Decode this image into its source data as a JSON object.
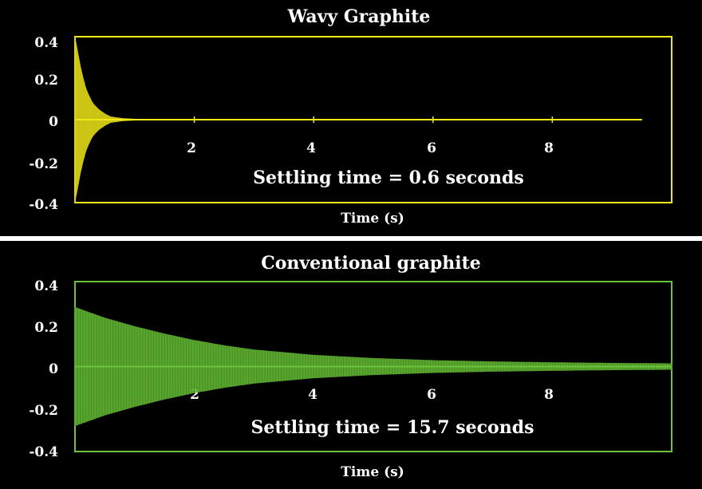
{
  "chart_data": [
    {
      "type": "line",
      "title": "Wavy Graphite",
      "xlabel": "Time (s)",
      "ylabel": "",
      "xlim": [
        0,
        10
      ],
      "ylim": [
        -0.4,
        0.4
      ],
      "x_ticks": [
        "2",
        "4",
        "6",
        "8"
      ],
      "y_ticks": [
        "0.4",
        "0.2",
        "0",
        "-0.2",
        "-0.4"
      ],
      "annotation": "Settling time = 0.6 seconds",
      "color": "#f0e81a",
      "grid": false,
      "series": [
        {
          "x": [
            0.0,
            0.05,
            0.1,
            0.15,
            0.2,
            0.3,
            0.4,
            0.5,
            0.6,
            0.8,
            1.0,
            2.0,
            4.0,
            6.0,
            8.0,
            9.5
          ],
          "values": [
            0.4,
            0.33,
            0.25,
            0.19,
            0.14,
            0.08,
            0.05,
            0.03,
            0.015,
            0.007,
            0.004,
            0.003,
            0.003,
            0.003,
            0.003,
            0.003
          ]
        }
      ]
    },
    {
      "type": "line",
      "title": "Conventional graphite",
      "xlabel": "Time (s)",
      "ylabel": "",
      "xlim": [
        0,
        10
      ],
      "ylim": [
        -0.4,
        0.4
      ],
      "x_ticks": [
        "2",
        "4",
        "6",
        "8"
      ],
      "y_ticks": [
        "0.4",
        "0.2",
        "0",
        "-0.2",
        "-0.4"
      ],
      "annotation": "Settling time = 15.7 seconds",
      "color": "#6cc23a",
      "grid": false,
      "series": [
        {
          "x": [
            0.0,
            0.5,
            1.0,
            1.5,
            2.0,
            2.5,
            3.0,
            4.0,
            5.0,
            6.0,
            7.0,
            8.0,
            9.0,
            10.0
          ],
          "values": [
            0.28,
            0.23,
            0.19,
            0.155,
            0.125,
            0.1,
            0.08,
            0.055,
            0.04,
            0.03,
            0.024,
            0.02,
            0.017,
            0.015
          ]
        }
      ]
    }
  ]
}
